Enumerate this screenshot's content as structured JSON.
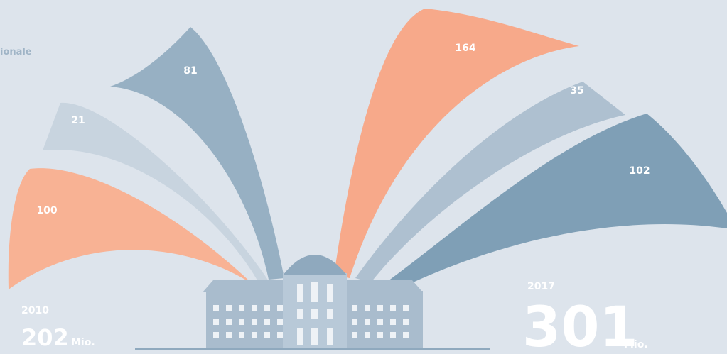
{
  "header": {
    "label": "ionale"
  },
  "left": {
    "year": "2010",
    "total": "202",
    "unit": "Mio.",
    "segments": [
      81,
      21,
      100
    ]
  },
  "right": {
    "year": "2017",
    "total": "301",
    "unit": "Mio.",
    "segments": [
      164,
      35,
      102
    ]
  }
}
